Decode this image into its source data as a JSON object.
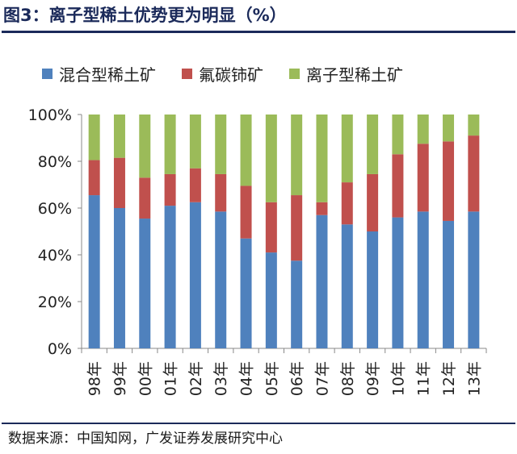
{
  "title": "图3：离子型稀土优势更为明显（%）",
  "source": "数据来源：中国知网，广发证券发展研究中心",
  "colors": {
    "mixed": "#4f81bd",
    "fluoro": "#c0504d",
    "ionic": "#9bbb59",
    "header": "#1b2a5a"
  },
  "chart_data": {
    "type": "bar",
    "stacked": true,
    "percent": true,
    "categories": [
      "98年",
      "99年",
      "00年",
      "01年",
      "02年",
      "03年",
      "04年",
      "05年",
      "06年",
      "07年",
      "08年",
      "09年",
      "10年",
      "11年",
      "12年",
      "13年"
    ],
    "series": [
      {
        "name": "混合型稀土矿",
        "values": [
          65.5,
          60,
          55.5,
          61,
          62.5,
          58.5,
          47,
          41,
          37.5,
          57,
          53,
          50,
          56,
          58.5,
          54.5,
          58.5
        ]
      },
      {
        "name": "氟碳铈矿",
        "values": [
          15,
          21.5,
          17.5,
          13.5,
          14.5,
          16,
          22.5,
          21.5,
          28,
          5.5,
          18,
          24.5,
          27,
          29,
          34,
          32.5
        ]
      },
      {
        "name": "离子型稀土矿",
        "values": [
          19.5,
          18.5,
          27,
          25.5,
          23,
          25.5,
          30.5,
          37.5,
          34.5,
          37.5,
          29,
          25.5,
          17,
          12.5,
          11.5,
          9
        ]
      }
    ],
    "yticks": [
      "0%",
      "20%",
      "40%",
      "60%",
      "80%",
      "100%"
    ],
    "ylim": [
      0,
      100
    ],
    "legend": "top"
  }
}
